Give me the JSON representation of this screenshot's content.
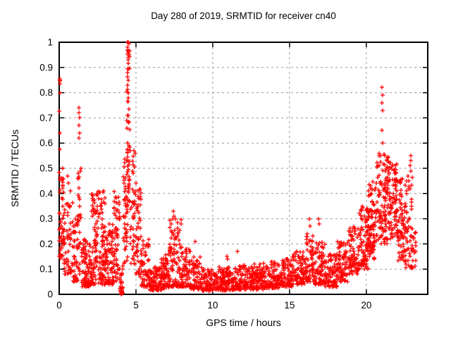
{
  "window": {
    "title": "Day 280 of 2019, SRMTID for receiver cn40"
  },
  "colors": {
    "marker": "#ff0000",
    "grid": "#9b9b9b",
    "axis": "#000000",
    "background": "#ffffff",
    "text": "#000000"
  },
  "chart_data": {
    "type": "scatter",
    "title": "Day 280 of 2019, SRMTID for receiver cn40",
    "xlabel": "GPS time / hours",
    "ylabel": "SRMTID / TECUs",
    "xlim": [
      0,
      24
    ],
    "ylim": [
      0,
      1
    ],
    "xticks": {
      "values": [
        0,
        5,
        10,
        15,
        20
      ],
      "labels": [
        "0",
        "5",
        "10",
        "15",
        "20"
      ]
    },
    "yticks": {
      "values": [
        0,
        0.1,
        0.2,
        0.3,
        0.4,
        0.5,
        0.6,
        0.7,
        0.8,
        0.9,
        1
      ],
      "labels": [
        "0",
        "0.1",
        "0.2",
        "0.3",
        "0.4",
        "0.5",
        "0.6",
        "0.7",
        "0.8",
        "0.9",
        "1"
      ]
    },
    "grid": "dashed, at every labeled tick",
    "marker": "plus",
    "marker_color": "#ff0000",
    "legend": "none",
    "cluster_format": [
      "t_start_hours",
      "t_end_hours",
      "n_points",
      "y_min_TECUs",
      "y_max_TECUs",
      "bottom_bias_exponent"
    ],
    "clusters": [
      [
        0.0,
        0.3,
        50,
        0.14,
        0.5,
        1.2
      ],
      [
        0.3,
        0.9,
        55,
        0.08,
        0.42,
        1.6
      ],
      [
        0.9,
        1.2,
        40,
        0.05,
        0.3,
        1.5
      ],
      [
        1.2,
        1.45,
        30,
        0.08,
        0.5,
        1.2
      ],
      [
        1.45,
        2.1,
        90,
        0.03,
        0.22,
        1.7
      ],
      [
        2.1,
        2.5,
        70,
        0.04,
        0.4,
        1.7
      ],
      [
        2.5,
        3.0,
        85,
        0.04,
        0.44,
        1.7
      ],
      [
        3.0,
        3.55,
        75,
        0.04,
        0.3,
        1.7
      ],
      [
        3.55,
        3.95,
        60,
        0.05,
        0.45,
        1.6
      ],
      [
        3.95,
        4.15,
        20,
        0.01,
        0.12,
        1.5
      ],
      [
        4.05,
        4.12,
        16,
        0.0,
        0.015,
        1.0
      ],
      [
        4.15,
        4.45,
        45,
        0.12,
        0.55,
        1.3
      ],
      [
        4.4,
        4.62,
        55,
        0.35,
        0.98,
        1.1
      ],
      [
        4.62,
        4.95,
        40,
        0.12,
        0.62,
        1.4
      ],
      [
        4.95,
        5.35,
        50,
        0.07,
        0.46,
        1.6
      ],
      [
        5.35,
        5.85,
        60,
        0.03,
        0.22,
        1.7
      ],
      [
        5.85,
        6.6,
        85,
        0.015,
        0.11,
        1.5
      ],
      [
        6.6,
        7.15,
        70,
        0.02,
        0.16,
        1.6
      ],
      [
        7.15,
        7.95,
        95,
        0.03,
        0.3,
        1.8
      ],
      [
        7.95,
        8.55,
        70,
        0.03,
        0.19,
        1.7
      ],
      [
        8.55,
        9.35,
        75,
        0.02,
        0.15,
        1.8
      ],
      [
        9.35,
        10.3,
        95,
        0.015,
        0.1,
        1.6
      ],
      [
        10.3,
        11.3,
        110,
        0.015,
        0.11,
        1.6
      ],
      [
        11.3,
        12.3,
        110,
        0.02,
        0.12,
        1.7
      ],
      [
        12.3,
        13.3,
        110,
        0.02,
        0.12,
        1.6
      ],
      [
        13.3,
        14.3,
        110,
        0.025,
        0.13,
        1.6
      ],
      [
        14.3,
        15.2,
        100,
        0.03,
        0.14,
        1.6
      ],
      [
        15.2,
        16.0,
        90,
        0.04,
        0.17,
        1.6
      ],
      [
        16.0,
        16.6,
        70,
        0.05,
        0.24,
        1.6
      ],
      [
        16.6,
        17.3,
        80,
        0.04,
        0.21,
        1.7
      ],
      [
        17.3,
        18.1,
        80,
        0.03,
        0.16,
        1.6
      ],
      [
        18.1,
        18.8,
        70,
        0.05,
        0.21,
        1.5
      ],
      [
        18.8,
        19.5,
        80,
        0.08,
        0.27,
        1.4
      ],
      [
        19.5,
        20.1,
        90,
        0.1,
        0.35,
        1.3
      ],
      [
        20.1,
        20.65,
        95,
        0.14,
        0.45,
        1.2
      ],
      [
        20.65,
        21.45,
        115,
        0.2,
        0.56,
        1.1
      ],
      [
        21.45,
        22.05,
        90,
        0.22,
        0.53,
        1.2
      ],
      [
        22.05,
        22.55,
        70,
        0.13,
        0.46,
        1.3
      ],
      [
        22.55,
        23.0,
        55,
        0.1,
        0.5,
        1.3
      ],
      [
        23.0,
        23.25,
        15,
        0.1,
        0.25,
        1.3
      ]
    ],
    "outliers": [
      [
        0.03,
        0.855
      ],
      [
        0.05,
        0.85
      ],
      [
        0.04,
        0.845
      ],
      [
        0.06,
        0.835
      ],
      [
        0.03,
        0.8
      ],
      [
        0.02,
        0.725
      ],
      [
        0.05,
        0.64
      ],
      [
        0.03,
        0.575
      ],
      [
        0.55,
        0.47
      ],
      [
        0.6,
        0.44
      ],
      [
        1.28,
        0.74
      ],
      [
        1.3,
        0.72
      ],
      [
        1.32,
        0.7
      ],
      [
        1.29,
        0.67
      ],
      [
        1.31,
        0.64
      ],
      [
        1.3,
        0.62
      ],
      [
        4.47,
        1.0
      ],
      [
        4.5,
        1.0
      ],
      [
        4.53,
        0.995
      ],
      [
        4.44,
        0.97
      ],
      [
        4.5,
        0.93
      ],
      [
        4.46,
        0.88
      ],
      [
        4.52,
        0.85
      ],
      [
        4.49,
        0.8
      ],
      [
        7.45,
        0.33
      ],
      [
        7.5,
        0.31
      ],
      [
        7.55,
        0.3
      ],
      [
        8.85,
        0.21
      ],
      [
        10.9,
        0.15
      ],
      [
        10.95,
        0.14
      ],
      [
        11.6,
        0.17
      ],
      [
        16.3,
        0.3
      ],
      [
        16.35,
        0.27
      ],
      [
        16.9,
        0.3
      ],
      [
        16.92,
        0.28
      ],
      [
        21.03,
        0.82
      ],
      [
        21.05,
        0.79
      ],
      [
        21.04,
        0.76
      ],
      [
        21.06,
        0.73
      ],
      [
        21.04,
        0.65
      ],
      [
        21.05,
        0.6
      ],
      [
        22.88,
        0.55
      ],
      [
        22.9,
        0.53
      ],
      [
        22.86,
        0.51
      ],
      [
        22.92,
        0.49
      ]
    ]
  }
}
